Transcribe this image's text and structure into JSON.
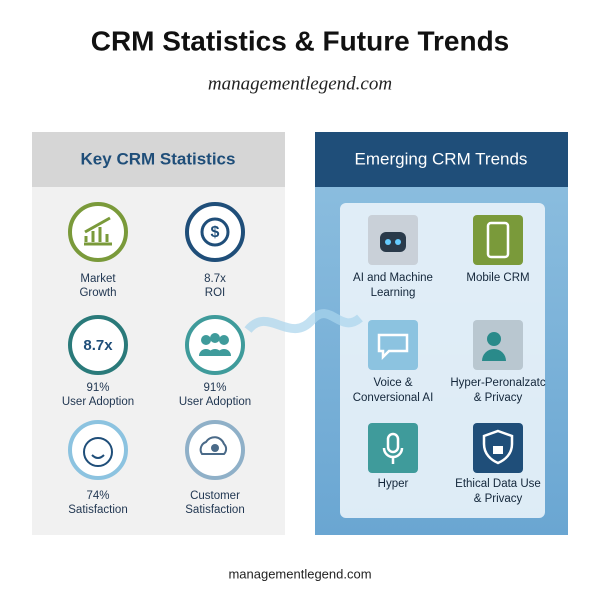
{
  "header": {
    "title": "CRM Statistics & Future Trends",
    "subtitle": "managementlegend.com"
  },
  "stats_panel": {
    "title": "Key CRM Statistics",
    "items": [
      {
        "lines": [
          "Market",
          "Growth"
        ]
      },
      {
        "lines": [
          "8.7x",
          "ROI"
        ]
      },
      {
        "icon_text": "8.7x",
        "lines": [
          "91%",
          "User Adoption"
        ]
      },
      {
        "lines": [
          "91%",
          "User Adoption"
        ]
      },
      {
        "lines": [
          "74%",
          "Satisfaction"
        ]
      },
      {
        "lines": [
          "Customer",
          "Satisfaction"
        ]
      }
    ]
  },
  "trends_panel": {
    "title": "Emerging CRM Trends",
    "items": [
      {
        "lines": [
          "AI and Machine",
          "Learning"
        ]
      },
      {
        "lines": [
          "Mobile CRM"
        ]
      },
      {
        "lines": [
          "Voice &",
          "Conversional AI"
        ]
      },
      {
        "lines": [
          "Hyper-Peronalzatc",
          "& Privacy"
        ]
      },
      {
        "lines": [
          "Hyper"
        ]
      },
      {
        "lines": [
          "Ethical Data Use",
          "& Privacy"
        ]
      }
    ]
  },
  "footer": "managementlegend.com"
}
